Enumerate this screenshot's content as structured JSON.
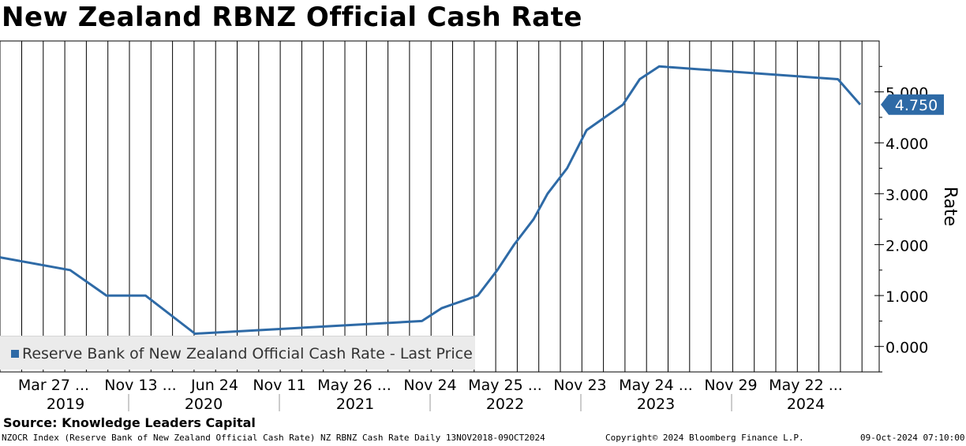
{
  "title": "New Zealand RBNZ Official Cash Rate",
  "source": "Source: Knowledge Leaders Capital",
  "footer": {
    "left": "NZOCR Index (Reserve Bank of New Zealand Official Cash Rate) NZ RBNZ Cash Rate  Daily 13NOV2018-09OCT2024",
    "middle": "Copyright© 2024 Bloomberg Finance L.P.",
    "right": "09-Oct-2024 07:10:00"
  },
  "legend": {
    "label": "Reserve Bank of New Zealand Official Cash Rate - Last Price",
    "color": "#2e6aa6"
  },
  "last_price_label": "4.750",
  "chart_data": {
    "type": "line",
    "title": "New Zealand RBNZ Official Cash Rate",
    "ylabel": "Rate",
    "ylim": [
      -0.5,
      6.0
    ],
    "y_ticks": [
      0,
      1,
      2,
      3,
      4,
      5
    ],
    "y_tick_labels": [
      "0.000",
      "1.000",
      "2.000",
      "3.000",
      "4.000",
      "5.000"
    ],
    "x_tick_labels": [
      "Mar 27 ...",
      "Nov 13 ...",
      "Jun 24",
      "Nov 11",
      "May 26 ...",
      "Nov 24",
      "May 25 ...",
      "Nov 23",
      "May 24 ...",
      "Nov 29",
      "May 22 ..."
    ],
    "x_years": [
      "2019",
      "2020",
      "2021",
      "2022",
      "2023",
      "2024"
    ],
    "grid": true,
    "legend_position": "bottom-left",
    "color": "#2e6aa6",
    "series": [
      {
        "name": "Reserve Bank of New Zealand Official Cash Rate - Last Price",
        "x": [
          "2018-11-13",
          "2019-05-08",
          "2019-08-07",
          "2019-11-13",
          "2020-03-16",
          "2021-10-06",
          "2021-11-24",
          "2022-02-23",
          "2022-04-13",
          "2022-05-25",
          "2022-07-13",
          "2022-08-17",
          "2022-10-05",
          "2022-11-23",
          "2023-02-22",
          "2023-04-05",
          "2023-05-24",
          "2024-08-14",
          "2024-10-09"
        ],
        "values": [
          1.75,
          1.5,
          1.0,
          1.0,
          0.25,
          0.5,
          0.75,
          1.0,
          1.5,
          2.0,
          2.5,
          3.0,
          3.5,
          4.25,
          4.75,
          5.25,
          5.5,
          5.25,
          4.75
        ]
      }
    ]
  }
}
